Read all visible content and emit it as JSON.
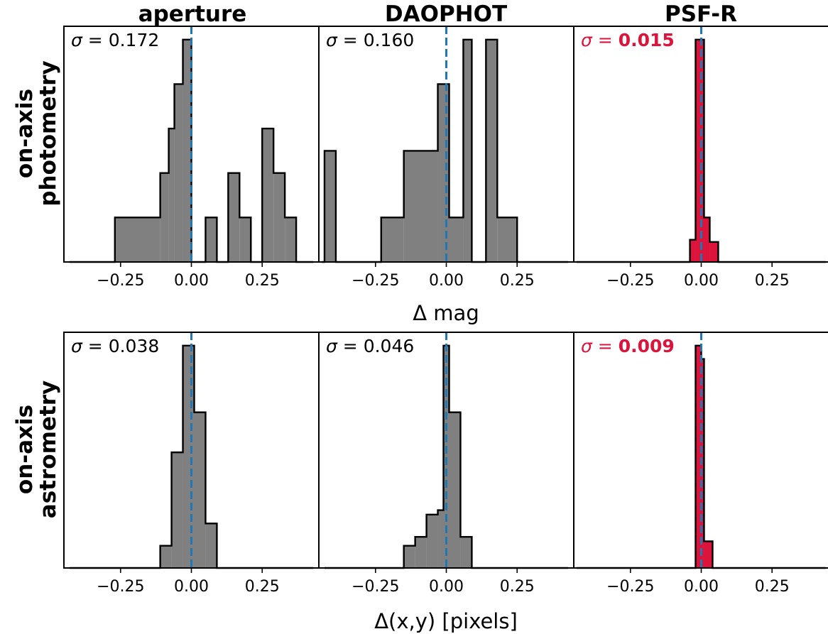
{
  "column_titles": [
    "aperture",
    "DAOPHOT",
    "PSF-R"
  ],
  "row_labels": [
    [
      "on-axis",
      "photometry"
    ],
    [
      "on-axis",
      "astrometry"
    ]
  ],
  "xlabels": [
    "Δ mag",
    "Δ(x,y) [pixels]"
  ],
  "colors": {
    "hist_default": "#808080",
    "hist_highlight": "#dc143c",
    "sigma_default": "#000000",
    "sigma_highlight": "#dc143c",
    "reference_line": "#1f77b4",
    "edge": "#000000"
  },
  "chart_data": [
    {
      "type": "histogram",
      "row": 0,
      "col": 0,
      "title": "aperture",
      "xlim": [
        -0.45,
        0.45
      ],
      "ylim": [
        0,
        5.3
      ],
      "xticks": [
        -0.25,
        0.0,
        0.25
      ],
      "xtick_labels": [
        "−0.25",
        "0.00",
        "0.25"
      ],
      "reference_x": 0.0,
      "sigma": {
        "prefix": "σ",
        "eq": " = ",
        "value": "0.172",
        "bold": false
      },
      "highlight": false,
      "bin_edges": [
        -0.43,
        -0.27,
        -0.11,
        -0.08,
        -0.06,
        -0.03,
        0.0,
        0.05,
        0.09,
        0.13,
        0.17,
        0.21,
        0.25,
        0.29,
        0.33,
        0.37,
        0.43
      ],
      "counts": [
        0,
        1,
        2,
        3,
        4,
        5,
        0,
        1,
        0,
        2,
        1,
        0,
        3,
        2,
        1,
        0
      ]
    },
    {
      "type": "histogram",
      "row": 0,
      "col": 1,
      "title": "DAOPHOT",
      "xlim": [
        -0.45,
        0.45
      ],
      "ylim": [
        0,
        5.3
      ],
      "xticks": [
        -0.25,
        0.0,
        0.25
      ],
      "xtick_labels": [
        "−0.25",
        "0.00",
        "0.25"
      ],
      "reference_x": 0.0,
      "sigma": {
        "prefix": "σ",
        "eq": " = ",
        "value": "0.160",
        "bold": false
      },
      "highlight": false,
      "bin_edges": [
        -0.44,
        -0.43,
        -0.39,
        -0.23,
        -0.15,
        -0.03,
        0.01,
        0.06,
        0.09,
        0.14,
        0.18,
        0.25,
        0.43
      ],
      "counts": [
        0,
        2.5,
        0,
        1,
        2.5,
        4,
        1,
        5,
        0,
        5,
        1,
        0
      ]
    },
    {
      "type": "histogram",
      "row": 0,
      "col": 2,
      "title": "PSF-R",
      "xlim": [
        -0.45,
        0.45
      ],
      "ylim": [
        0,
        5.3
      ],
      "xticks": [
        -0.25,
        0.0,
        0.25
      ],
      "xtick_labels": [
        "−0.25",
        "0.00",
        "0.25"
      ],
      "reference_x": 0.0,
      "sigma": {
        "prefix": "σ",
        "eq": " = ",
        "value": "0.015",
        "bold": true
      },
      "highlight": true,
      "bin_edges": [
        -0.44,
        -0.04,
        -0.02,
        0.01,
        0.03,
        0.06,
        0.44
      ],
      "counts": [
        0,
        0.5,
        5,
        1,
        0.45,
        0
      ]
    },
    {
      "type": "histogram",
      "row": 1,
      "col": 0,
      "title": "",
      "xlim": [
        -0.45,
        0.45
      ],
      "ylim": [
        0,
        5.3
      ],
      "xticks": [
        -0.25,
        0.0,
        0.25
      ],
      "xtick_labels": [
        "−0.25",
        "0.00",
        "0.25"
      ],
      "reference_x": 0.0,
      "sigma": {
        "prefix": "σ",
        "eq": " = ",
        "value": "0.038",
        "bold": false
      },
      "highlight": false,
      "bin_edges": [
        -0.43,
        -0.11,
        -0.07,
        -0.03,
        0.01,
        0.05,
        0.09,
        0.43
      ],
      "counts": [
        0,
        0.5,
        2.6,
        5,
        3.5,
        1,
        0
      ]
    },
    {
      "type": "histogram",
      "row": 1,
      "col": 1,
      "title": "",
      "xlim": [
        -0.45,
        0.45
      ],
      "ylim": [
        0,
        5.3
      ],
      "xticks": [
        -0.25,
        0.0,
        0.25
      ],
      "xtick_labels": [
        "−0.25",
        "0.00",
        "0.25"
      ],
      "reference_x": 0.0,
      "sigma": {
        "prefix": "σ",
        "eq": " = ",
        "value": "0.046",
        "bold": false
      },
      "highlight": false,
      "bin_edges": [
        -0.43,
        -0.15,
        -0.11,
        -0.07,
        -0.03,
        -0.01,
        0.01,
        0.05,
        0.09,
        0.43
      ],
      "counts": [
        0,
        0.5,
        0.7,
        1.2,
        1.3,
        5,
        3.5,
        0.7,
        0
      ]
    },
    {
      "type": "histogram",
      "row": 1,
      "col": 2,
      "title": "",
      "xlim": [
        -0.45,
        0.45
      ],
      "ylim": [
        0,
        5.3
      ],
      "xticks": [
        -0.25,
        0.0,
        0.25
      ],
      "xtick_labels": [
        "−0.25",
        "0.00",
        "0.25"
      ],
      "reference_x": 0.0,
      "sigma": {
        "prefix": "σ",
        "eq": " = ",
        "value": "0.009",
        "bold": true
      },
      "highlight": true,
      "bin_edges": [
        -0.44,
        -0.02,
        0.0,
        0.01,
        0.04,
        0.44
      ],
      "counts": [
        0,
        5,
        4.7,
        0.6,
        0
      ]
    }
  ]
}
